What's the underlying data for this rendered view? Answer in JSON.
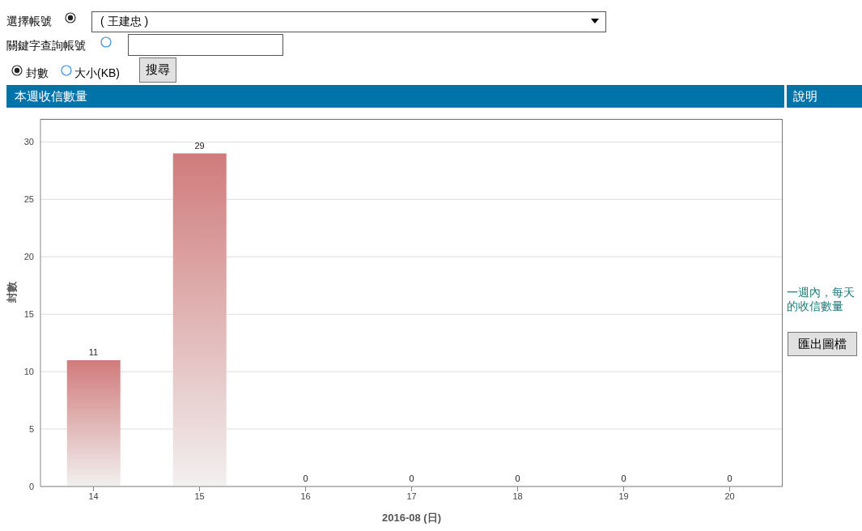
{
  "chart_data": {
    "type": "bar",
    "title": "本週收信數量",
    "xlabel": "2016-08 (日)",
    "ylabel": "封數",
    "categories": [
      "14",
      "15",
      "16",
      "17",
      "18",
      "19",
      "20"
    ],
    "values": [
      11,
      29,
      0,
      0,
      0,
      0,
      0
    ],
    "color": "#d07b7b",
    "ylim": [
      0,
      32
    ],
    "yticks": [
      0,
      5,
      10,
      15,
      20,
      25,
      30
    ],
    "grid": "y",
    "legend": false,
    "data_labels": true,
    "annotations": [
      "選擇帳號",
      "( 王建忠 )",
      "關鍵字查詢帳號",
      "封數",
      "大小(KB)",
      "搜尋",
      "說明",
      "一週內，每天的收信數量",
      "匯出圖檔"
    ]
  }
}
